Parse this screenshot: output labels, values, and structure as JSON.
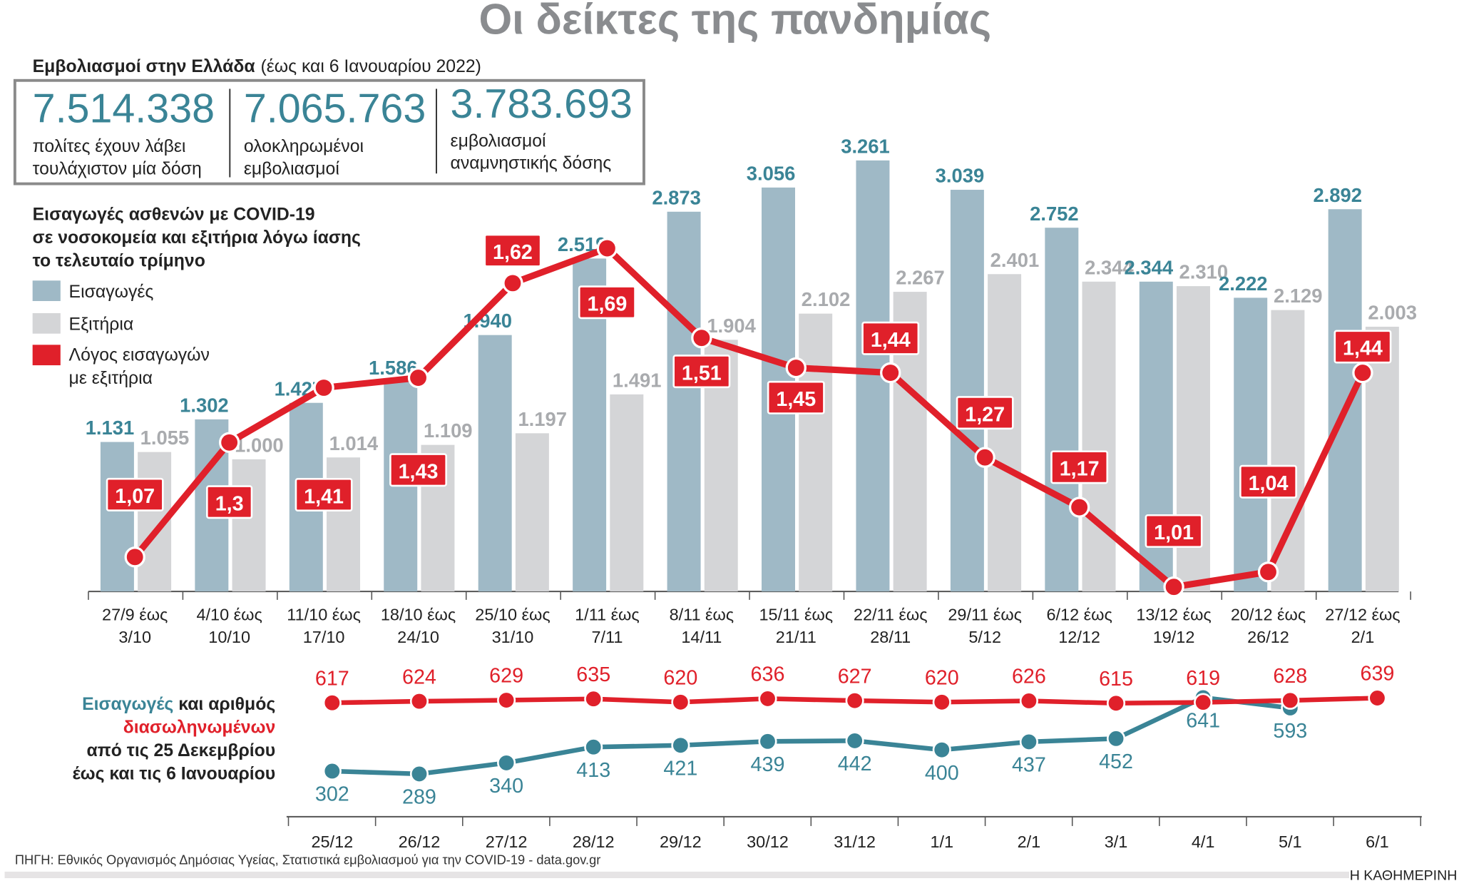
{
  "title": "Οι δείκτες της πανδημίας",
  "vaccinations": {
    "heading_bold": "Εμβολιασμοί στην Ελλάδα",
    "heading_note": "(έως και 6 Ιανουαρίου 2022)",
    "stats": [
      {
        "value": "7.514.338",
        "line1": "πολίτες έχουν λάβει",
        "line2": "τουλάχιστον μία δόση"
      },
      {
        "value": "7.065.763",
        "line1": "ολοκληρωμένοι",
        "line2": "εμβολιασμοί"
      },
      {
        "value": "3.783.693",
        "line1": "εμβολιασμοί",
        "line2": "αναμνηστικής δόσης"
      }
    ]
  },
  "legend": {
    "title_lines": [
      "Εισαγωγές ασθενών με COVID-19",
      "σε νοσοκομεία και εξιτήρια λόγω ίασης",
      "το τελευταίο τρίμηνο"
    ],
    "items": [
      {
        "label": "Εισαγωγές",
        "color": "#9fb9c6"
      },
      {
        "label": "Εξιτήρια",
        "color": "#d4d5d7"
      },
      {
        "label": "Λόγος εισαγωγών",
        "label2": "με εξιτήρια",
        "color": "#e0202a"
      }
    ]
  },
  "colors": {
    "admissions_bar": "#9fb9c6",
    "admissions_text": "#3a8496",
    "discharges_bar": "#d4d5d7",
    "discharges_text": "#a9abae",
    "ratio": "#e0202a",
    "intubated": "#e0202a",
    "daily_admissions": "#3a8496"
  },
  "chart_data": [
    {
      "type": "bar",
      "categories": [
        [
          "27/9 έως",
          "3/10"
        ],
        [
          "4/10 έως",
          "10/10"
        ],
        [
          "11/10 έως",
          "17/10"
        ],
        [
          "18/10 έως",
          "24/10"
        ],
        [
          "25/10 έως",
          "31/10"
        ],
        [
          "1/11 έως",
          "7/11"
        ],
        [
          "8/11 έως",
          "14/11"
        ],
        [
          "15/11 έως",
          "21/11"
        ],
        [
          "22/11 έως",
          "28/11"
        ],
        [
          "29/11 έως",
          "5/12"
        ],
        [
          "6/12 έως",
          "12/12"
        ],
        [
          "13/12 έως",
          "19/12"
        ],
        [
          "20/12 έως",
          "26/12"
        ],
        [
          "27/12 έως",
          "2/1"
        ]
      ],
      "series": [
        {
          "name": "Εισαγωγές",
          "type": "bar",
          "values": [
            1131,
            1302,
            1427,
            1586,
            1940,
            2519,
            2873,
            3056,
            3261,
            3039,
            2752,
            2344,
            2222,
            2892
          ],
          "labels": [
            "1.131",
            "1.302",
            "1.427",
            "1.586",
            "1.940",
            "2.519",
            "2.873",
            "3.056",
            "3.261",
            "3.039",
            "2.752",
            "2.344",
            "2.222",
            "2.892"
          ]
        },
        {
          "name": "Εξιτήρια",
          "type": "bar",
          "values": [
            1055,
            1000,
            1014,
            1109,
            1197,
            1491,
            1904,
            2102,
            2267,
            2401,
            2344,
            2310,
            2129,
            2003
          ],
          "labels": [
            "1.055",
            "1.000",
            "1.014",
            "1.109",
            "1.197",
            "1.491",
            "1.904",
            "2.102",
            "2.267",
            "2.401",
            "2.344",
            "2.310",
            "2.129",
            "2.003"
          ]
        },
        {
          "name": "Λόγος εισαγωγών με εξιτήρια",
          "type": "line",
          "values": [
            1.07,
            1.3,
            1.41,
            1.43,
            1.62,
            1.69,
            1.51,
            1.45,
            1.44,
            1.27,
            1.17,
            1.01,
            1.04,
            1.44
          ],
          "labels": [
            "1,07",
            "1,3",
            "1,41",
            "1,43",
            "1,62",
            "1,69",
            "1,51",
            "1,45",
            "1,44",
            "1,27",
            "1,17",
            "1,01",
            "1,04",
            "1,44"
          ]
        }
      ],
      "grid": false
    },
    {
      "type": "line",
      "side_label": {
        "part1_colored": "Εισαγωγές",
        "part1_rest": " και αριθμός",
        "line2_colored": "διασωληνωμένων",
        "line3": "από τις 25 Δεκεμβρίου",
        "line4": "έως και τις 6 Ιανουαρίου"
      },
      "categories": [
        "25/12",
        "26/12",
        "27/12",
        "28/12",
        "29/12",
        "30/12",
        "31/12",
        "1/1",
        "2/1",
        "3/1",
        "4/1",
        "5/1",
        "6/1"
      ],
      "series": [
        {
          "name": "διασωληνωμένων",
          "values": [
            617,
            624,
            629,
            635,
            620,
            636,
            627,
            620,
            626,
            615,
            619,
            628,
            639
          ]
        },
        {
          "name": "Εισαγωγές",
          "values": [
            302,
            289,
            340,
            413,
            421,
            439,
            442,
            400,
            437,
            452,
            641,
            593,
            null
          ]
        }
      ],
      "grid": false
    }
  ],
  "source": "ΠΗΓΗ: Εθνικός Οργανισμός Δημόσιας Υγείας, Στατιστικά εμβολιασμού για την COVID-19 - data.gov.gr",
  "brand": "Η ΚΑΘΗΜΕΡΙΝΗ"
}
